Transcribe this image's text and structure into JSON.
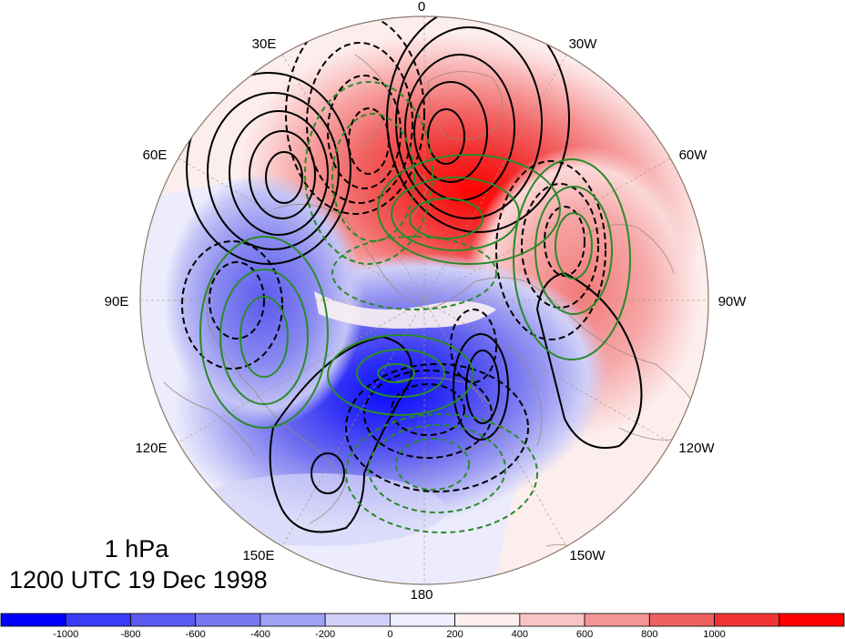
{
  "title": {
    "level": "1 hPa",
    "time": "1200 UTC 19 Dec 1998"
  },
  "map": {
    "projection": "north-polar-stereographic",
    "longitude_labels": [
      "0",
      "30W",
      "60W",
      "90W",
      "120W",
      "150W",
      "180",
      "150E",
      "120E",
      "90E",
      "60E",
      "30E"
    ],
    "shading_field": {
      "positive_region": "Atlantic / Europe sector, maximum near 0-30W",
      "negative_region": "Eastern Siberia / North Pacific sector, minimum near 120E-150E"
    },
    "contour_styles": {
      "black_solid": "positive contours (field 2)",
      "black_dashed": "negative contours (field 2)",
      "green_solid": "positive contours (field 3)",
      "green_dashed": "negative contours (field 3)"
    },
    "colors": {
      "coastline": "#9a8878",
      "grid": "#a89870",
      "black_contour": "#000000",
      "green_contour": "#2a8a2a"
    }
  },
  "colorbar": {
    "labels": [
      "-1000",
      "-800",
      "-600",
      "-400",
      "-200",
      "0",
      "200",
      "400",
      "600",
      "800",
      "1000"
    ],
    "colors": [
      "#0000ff",
      "#3a3af8",
      "#5a5af0",
      "#7878f0",
      "#a0a0f4",
      "#d0d0f8",
      "#eeeeff",
      "#fff0f0",
      "#f8c4c4",
      "#f49494",
      "#f06060",
      "#f03434",
      "#ff0000"
    ]
  }
}
